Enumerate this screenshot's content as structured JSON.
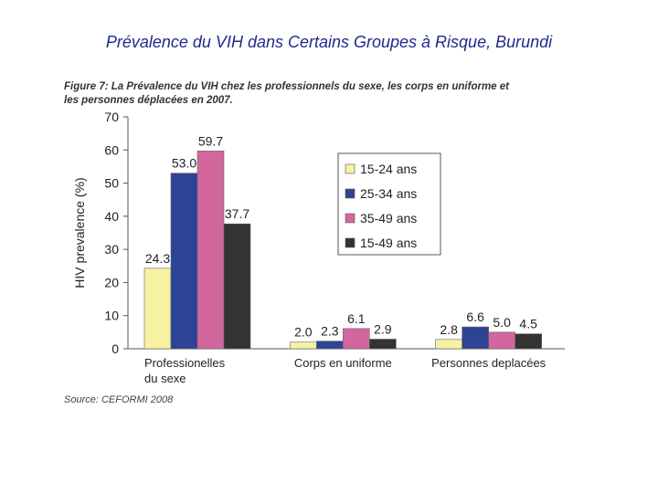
{
  "slide": {
    "title": "Prévalence du VIH dans Certains Groupes à Risque, Burundi"
  },
  "figure": {
    "caption_line1": "Figure 7: La Prévalence du VIH chez les professionnels du sexe, les corps en uniforme et",
    "caption_line2": "les personnes déplacées en 2007.",
    "source": "Source: CEFORMI 2008"
  },
  "chart_data": {
    "type": "bar",
    "ylabel": "HIV prevalence (%)",
    "ylim": [
      0,
      70
    ],
    "yticks": [
      0,
      10,
      20,
      30,
      40,
      50,
      60,
      70
    ],
    "categories": [
      [
        "Professionelles",
        "du sexe"
      ],
      [
        "Corps en uniforme"
      ],
      [
        "Personnes deplacées"
      ]
    ],
    "series": [
      {
        "name": "15-24 ans",
        "color": "#f7f1a2",
        "values": [
          24.3,
          2.0,
          2.8
        ]
      },
      {
        "name": "25-34 ans",
        "color": "#2d4494",
        "values": [
          53.0,
          2.3,
          6.6
        ]
      },
      {
        "name": "35-49 ans",
        "color": "#d2679e",
        "values": [
          59.7,
          6.1,
          5.0
        ]
      },
      {
        "name": "15-49 ans",
        "color": "#333333",
        "values": [
          37.7,
          2.9,
          4.5
        ]
      }
    ],
    "data_labels": [
      [
        "24.3",
        "2.0",
        "2.8"
      ],
      [
        "53.0",
        "2.3",
        "6.6"
      ],
      [
        "59.7",
        "6.1",
        "5.0"
      ],
      [
        "37.7",
        "2.9",
        "4.5"
      ]
    ],
    "legend_position": "right",
    "grid": false
  }
}
